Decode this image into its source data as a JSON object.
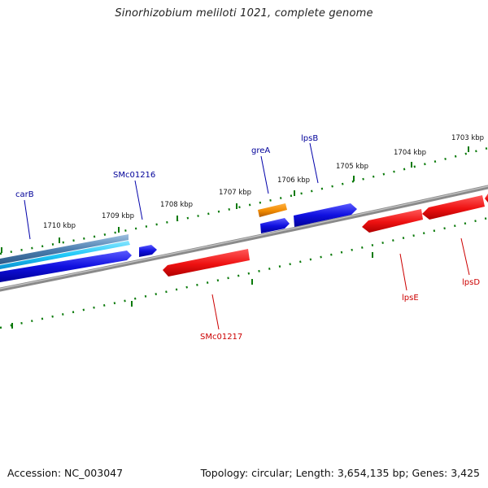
{
  "title": "Sinorhizobium meliloti 1021, complete genome",
  "footer": {
    "accession": "Accession: NC_003047",
    "summary": "Topology: circular; Length: 3,654,135 bp; Genes: 3,425"
  },
  "colors": {
    "forward_gene": "#1010e0",
    "reverse_gene": "#ee1111",
    "rna_gene": "#f08a00",
    "cds_light": "#20c8f8",
    "cds_slate": "#4d7fb0",
    "backbone": "#8a8a8a",
    "tick": "#0a7a0a",
    "label_forward": "#000099",
    "label_reverse": "#cc0000"
  },
  "scale_labels": [
    "1710 kbp",
    "1709 kbp",
    "1708 kbp",
    "1707 kbp",
    "1706 kbp",
    "1705 kbp",
    "1704 kbp",
    "1703 kbp"
  ],
  "gene_labels": {
    "forward": [
      "carB",
      "SMc01216",
      "greA",
      "lpsB"
    ],
    "reverse": [
      "SMc01217",
      "lpsE",
      "lpsD"
    ]
  }
}
